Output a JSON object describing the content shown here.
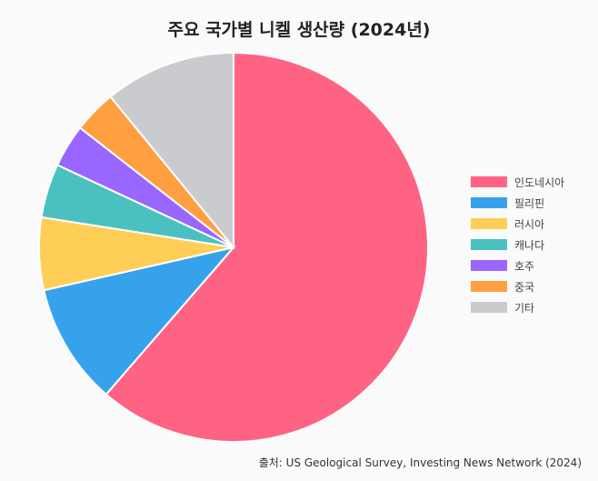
{
  "chart_data": {
    "type": "pie",
    "title": "주요 국가별 니켈 생산량 (2024년)",
    "categories": [
      "인도네시아",
      "필리핀",
      "러시아",
      "캐나다",
      "호주",
      "중국",
      "기타"
    ],
    "values": [
      60.2,
      9.9,
      5.9,
      4.4,
      3.5,
      3.5,
      10.7
    ],
    "colors": [
      "#ff6384",
      "#36a2eb",
      "#ffce56",
      "#4bc0c0",
      "#9966ff",
      "#ff9f40",
      "#c9cbcf"
    ],
    "legend_position": "right",
    "source": "출처: US Geological Survey, Investing News Network (2024)"
  }
}
